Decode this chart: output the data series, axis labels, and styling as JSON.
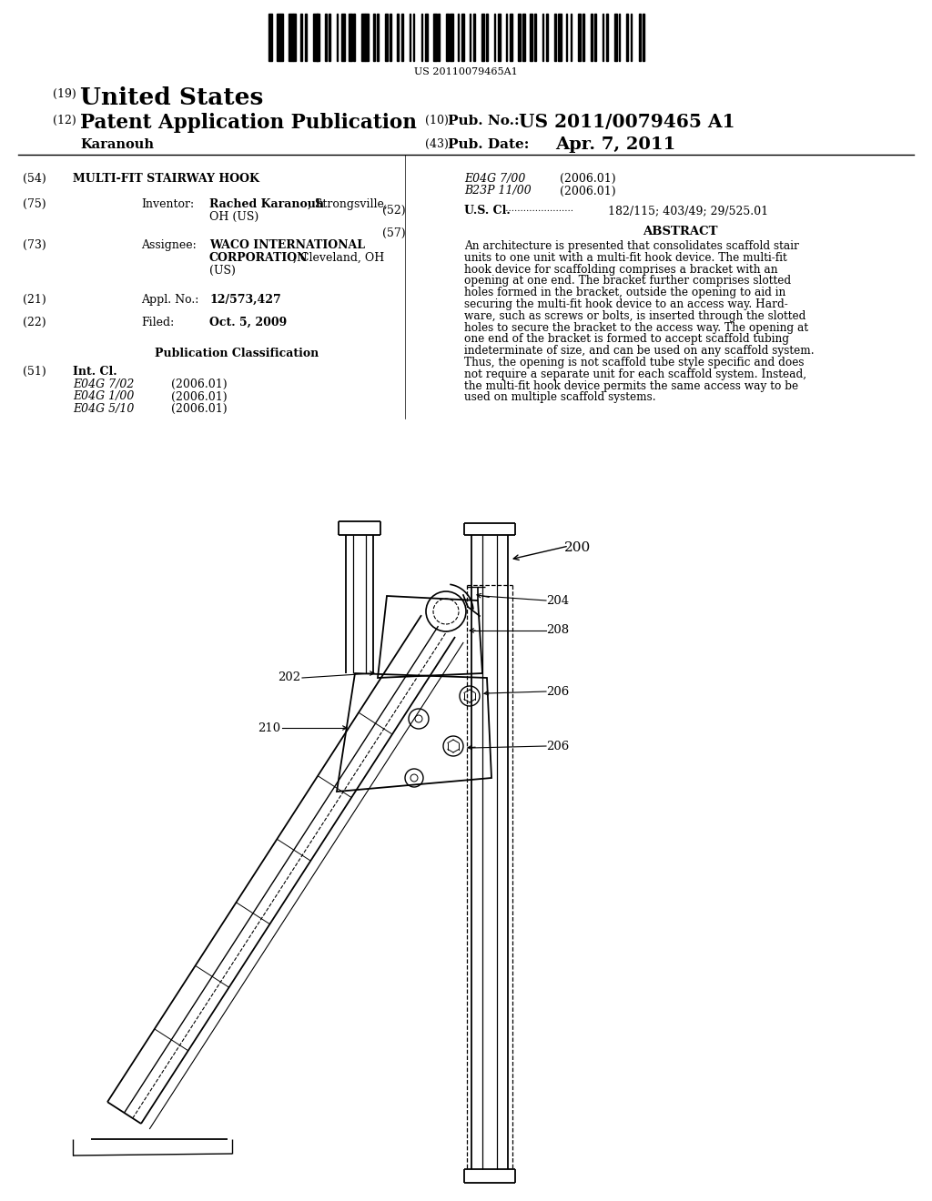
{
  "background_color": "#ffffff",
  "barcode_text": "US 20110079465A1",
  "patent_number": "19",
  "country": "United States",
  "pub_type_num": "12",
  "pub_type": "Patent Application Publication",
  "pub_no_label": "(10)  Pub. No.:",
  "pub_no": "US 2011/0079465 A1",
  "inventor_label": "Karanouh",
  "pub_date_label": "(43)  Pub. Date:",
  "pub_date": "Apr. 7, 2011",
  "title_num": "(54)",
  "title": "MULTI-FIT STAIRWAY HOOK",
  "inventor_num": "(75)",
  "inventor_key": "Inventor:",
  "inventor_bold": "Rached Karanouh",
  "inventor_rest": ", Strongsville,",
  "inventor_line2": "OH (US)",
  "assignee_num": "(73)",
  "assignee_key": "Assignee:",
  "assignee_bold1": "WACO INTERNATIONAL",
  "assignee_bold2": "CORPORATION",
  "assignee_rest2": ", Cleveland, OH",
  "assignee_line3": "(US)",
  "appl_num": "(21)",
  "appl_key": "Appl. No.:",
  "appl_val": "12/573,427",
  "filed_num": "(22)",
  "filed_key": "Filed:",
  "filed_val": "Oct. 5, 2009",
  "pub_class_header": "Publication Classification",
  "int_cl_num": "(51)",
  "int_cl_key": "Int. Cl.",
  "int_cl_entries": [
    [
      "E04G 7/02",
      "(2006.01)"
    ],
    [
      "E04G 1/00",
      "(2006.01)"
    ],
    [
      "E04G 5/10",
      "(2006.01)"
    ]
  ],
  "right_cl_entries": [
    [
      "E04G 7/00",
      "(2006.01)"
    ],
    [
      "B23P 11/00",
      "(2006.01)"
    ]
  ],
  "us_cl_num": "(52)",
  "us_cl_key": "U.S. Cl.",
  "us_cl_dots": "........................",
  "us_cl_val": "182/115; 403/49; 29/525.01",
  "abstract_num": "(57)",
  "abstract_title": "ABSTRACT",
  "abstract_lines": [
    "An architecture is presented that consolidates scaffold stair",
    "units to one unit with a multi-fit hook device. The multi-fit",
    "hook device for scaffolding comprises a bracket with an",
    "opening at one end. The bracket further comprises slotted",
    "holes formed in the bracket, outside the opening to aid in",
    "securing the multi-fit hook device to an access way. Hard-",
    "ware, such as screws or bolts, is inserted through the slotted",
    "holes to secure the bracket to the access way. The opening at",
    "one end of the bracket is formed to accept scaffold tubing",
    "indeterminate of size, and can be used on any scaffold system.",
    "Thus, the opening is not scaffold tube style specific and does",
    "not require a separate unit for each scaffold system. Instead,",
    "the multi-fit hook device permits the same access way to be",
    "used on multiple scaffold systems."
  ]
}
